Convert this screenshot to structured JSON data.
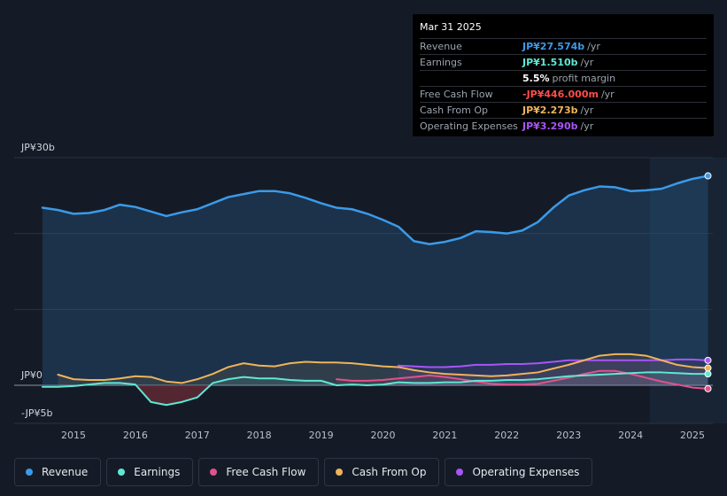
{
  "tooltip": {
    "date": "Mar 31 2025",
    "rows": [
      {
        "label": "Revenue",
        "value": "JP¥27.574b",
        "suffix": "/yr",
        "color": "#3b9ae9"
      },
      {
        "label": "Earnings",
        "value": "JP¥1.510b",
        "suffix": "/yr",
        "color": "#5ee8d4"
      },
      {
        "label": "",
        "value": "5.5%",
        "suffix": "profit margin",
        "color": "#ffffff"
      },
      {
        "label": "Free Cash Flow",
        "value": "-JP¥446.000m",
        "suffix": "/yr",
        "color": "#ff4d4d"
      },
      {
        "label": "Cash From Op",
        "value": "JP¥2.273b",
        "suffix": "/yr",
        "color": "#f0b35a"
      },
      {
        "label": "Operating Expenses",
        "value": "JP¥3.290b",
        "suffix": "/yr",
        "color": "#a855f7"
      }
    ]
  },
  "legend": {
    "items": [
      {
        "label": "Revenue",
        "color": "#3b9ae9"
      },
      {
        "label": "Earnings",
        "color": "#5ee8d4"
      },
      {
        "label": "Free Cash Flow",
        "color": "#e0528c"
      },
      {
        "label": "Cash From Op",
        "color": "#f0b35a"
      },
      {
        "label": "Operating Expenses",
        "color": "#a855f7"
      }
    ]
  },
  "chart_data": {
    "type": "line",
    "title": "",
    "xlabel": "",
    "ylabel": "",
    "y_unit": "JP¥b",
    "ylim": [
      -5,
      30
    ],
    "xlim": [
      2014.5,
      2025.3
    ],
    "y_tick_labels": [
      {
        "value": 30,
        "label": "JP¥30b"
      },
      {
        "value": 0,
        "label": "JP¥0"
      },
      {
        "value": -5,
        "label": "-JP¥5b"
      }
    ],
    "x_ticks": [
      "2015",
      "2016",
      "2017",
      "2018",
      "2019",
      "2020",
      "2021",
      "2022",
      "2023",
      "2024",
      "2025"
    ],
    "forecast_start": 2024.25,
    "series": [
      {
        "name": "Revenue",
        "color": "#3b9ae9",
        "points": [
          [
            2014.5,
            23.4
          ],
          [
            2014.75,
            23.1
          ],
          [
            2015.0,
            22.6
          ],
          [
            2015.25,
            22.7
          ],
          [
            2015.5,
            23.1
          ],
          [
            2015.75,
            23.8
          ],
          [
            2016.0,
            23.5
          ],
          [
            2016.25,
            22.9
          ],
          [
            2016.5,
            22.3
          ],
          [
            2016.75,
            22.8
          ],
          [
            2017.0,
            23.2
          ],
          [
            2017.25,
            24.0
          ],
          [
            2017.5,
            24.8
          ],
          [
            2017.75,
            25.2
          ],
          [
            2018.0,
            25.6
          ],
          [
            2018.25,
            25.6
          ],
          [
            2018.5,
            25.3
          ],
          [
            2018.75,
            24.7
          ],
          [
            2019.0,
            24.0
          ],
          [
            2019.25,
            23.4
          ],
          [
            2019.5,
            23.2
          ],
          [
            2019.75,
            22.6
          ],
          [
            2020.0,
            21.8
          ],
          [
            2020.25,
            20.9
          ],
          [
            2020.5,
            19.0
          ],
          [
            2020.75,
            18.6
          ],
          [
            2021.0,
            18.9
          ],
          [
            2021.25,
            19.4
          ],
          [
            2021.5,
            20.3
          ],
          [
            2021.75,
            20.2
          ],
          [
            2022.0,
            20.0
          ],
          [
            2022.25,
            20.4
          ],
          [
            2022.5,
            21.5
          ],
          [
            2022.75,
            23.4
          ],
          [
            2023.0,
            25.0
          ],
          [
            2023.25,
            25.7
          ],
          [
            2023.5,
            26.2
          ],
          [
            2023.75,
            26.1
          ],
          [
            2024.0,
            25.6
          ],
          [
            2024.25,
            25.7
          ],
          [
            2024.5,
            25.9
          ],
          [
            2024.75,
            26.6
          ],
          [
            2025.0,
            27.2
          ],
          [
            2025.25,
            27.6
          ]
        ]
      },
      {
        "name": "Earnings",
        "color": "#5ee8d4",
        "points": [
          [
            2014.5,
            -0.2
          ],
          [
            2014.75,
            -0.2
          ],
          [
            2015.0,
            -0.1
          ],
          [
            2015.25,
            0.1
          ],
          [
            2015.5,
            0.3
          ],
          [
            2015.75,
            0.3
          ],
          [
            2016.0,
            0.1
          ],
          [
            2016.25,
            -2.2
          ],
          [
            2016.5,
            -2.6
          ],
          [
            2016.75,
            -2.2
          ],
          [
            2017.0,
            -1.6
          ],
          [
            2017.25,
            0.3
          ],
          [
            2017.5,
            0.8
          ],
          [
            2017.75,
            1.1
          ],
          [
            2018.0,
            0.9
          ],
          [
            2018.25,
            0.9
          ],
          [
            2018.5,
            0.7
          ],
          [
            2018.75,
            0.6
          ],
          [
            2019.0,
            0.6
          ],
          [
            2019.25,
            0.0
          ],
          [
            2019.5,
            0.1
          ],
          [
            2019.75,
            0.0
          ],
          [
            2020.0,
            0.1
          ],
          [
            2020.25,
            0.4
          ],
          [
            2020.5,
            0.3
          ],
          [
            2020.75,
            0.3
          ],
          [
            2021.0,
            0.4
          ],
          [
            2021.25,
            0.4
          ],
          [
            2021.5,
            0.6
          ],
          [
            2021.75,
            0.6
          ],
          [
            2022.0,
            0.7
          ],
          [
            2022.25,
            0.7
          ],
          [
            2022.5,
            0.8
          ],
          [
            2022.75,
            1.0
          ],
          [
            2023.0,
            1.2
          ],
          [
            2023.25,
            1.3
          ],
          [
            2023.5,
            1.4
          ],
          [
            2023.75,
            1.5
          ],
          [
            2024.0,
            1.6
          ],
          [
            2024.25,
            1.7
          ],
          [
            2024.5,
            1.7
          ],
          [
            2024.75,
            1.6
          ],
          [
            2025.0,
            1.5
          ],
          [
            2025.25,
            1.5
          ]
        ]
      },
      {
        "name": "Free Cash Flow",
        "color": "#e0528c",
        "points": [
          [
            2019.25,
            0.8
          ],
          [
            2019.5,
            0.6
          ],
          [
            2019.75,
            0.6
          ],
          [
            2020.0,
            0.7
          ],
          [
            2020.25,
            0.9
          ],
          [
            2020.5,
            1.1
          ],
          [
            2020.75,
            1.3
          ],
          [
            2021.0,
            1.1
          ],
          [
            2021.25,
            0.8
          ],
          [
            2021.5,
            0.5
          ],
          [
            2021.75,
            0.2
          ],
          [
            2022.0,
            0.1
          ],
          [
            2022.25,
            0.1
          ],
          [
            2022.5,
            0.2
          ],
          [
            2022.75,
            0.6
          ],
          [
            2023.0,
            1.0
          ],
          [
            2023.25,
            1.5
          ],
          [
            2023.5,
            1.9
          ],
          [
            2023.75,
            1.9
          ],
          [
            2024.0,
            1.5
          ],
          [
            2024.25,
            1.0
          ],
          [
            2024.5,
            0.5
          ],
          [
            2024.75,
            0.1
          ],
          [
            2025.0,
            -0.3
          ],
          [
            2025.25,
            -0.45
          ]
        ]
      },
      {
        "name": "Cash From Op",
        "color": "#f0b35a",
        "points": [
          [
            2014.75,
            1.4
          ],
          [
            2015.0,
            0.8
          ],
          [
            2015.25,
            0.7
          ],
          [
            2015.5,
            0.7
          ],
          [
            2015.75,
            0.9
          ],
          [
            2016.0,
            1.2
          ],
          [
            2016.25,
            1.1
          ],
          [
            2016.5,
            0.5
          ],
          [
            2016.75,
            0.3
          ],
          [
            2017.0,
            0.8
          ],
          [
            2017.25,
            1.5
          ],
          [
            2017.5,
            2.4
          ],
          [
            2017.75,
            2.9
          ],
          [
            2018.0,
            2.6
          ],
          [
            2018.25,
            2.5
          ],
          [
            2018.5,
            2.9
          ],
          [
            2018.75,
            3.1
          ],
          [
            2019.0,
            3.0
          ],
          [
            2019.25,
            3.0
          ],
          [
            2019.5,
            2.9
          ],
          [
            2019.75,
            2.7
          ],
          [
            2020.0,
            2.5
          ],
          [
            2020.25,
            2.4
          ],
          [
            2020.5,
            2.0
          ],
          [
            2020.75,
            1.7
          ],
          [
            2021.0,
            1.5
          ],
          [
            2021.25,
            1.4
          ],
          [
            2021.5,
            1.3
          ],
          [
            2021.75,
            1.2
          ],
          [
            2022.0,
            1.3
          ],
          [
            2022.25,
            1.5
          ],
          [
            2022.5,
            1.7
          ],
          [
            2022.75,
            2.2
          ],
          [
            2023.0,
            2.7
          ],
          [
            2023.25,
            3.3
          ],
          [
            2023.5,
            3.9
          ],
          [
            2023.75,
            4.1
          ],
          [
            2024.0,
            4.1
          ],
          [
            2024.25,
            3.9
          ],
          [
            2024.5,
            3.3
          ],
          [
            2024.75,
            2.7
          ],
          [
            2025.0,
            2.4
          ],
          [
            2025.25,
            2.27
          ]
        ]
      },
      {
        "name": "Operating Expenses",
        "color": "#a855f7",
        "points": [
          [
            2020.25,
            2.6
          ],
          [
            2020.5,
            2.5
          ],
          [
            2020.75,
            2.4
          ],
          [
            2021.0,
            2.4
          ],
          [
            2021.25,
            2.5
          ],
          [
            2021.5,
            2.7
          ],
          [
            2021.75,
            2.7
          ],
          [
            2022.0,
            2.8
          ],
          [
            2022.25,
            2.8
          ],
          [
            2022.5,
            2.9
          ],
          [
            2022.75,
            3.1
          ],
          [
            2023.0,
            3.3
          ],
          [
            2023.25,
            3.3
          ],
          [
            2023.5,
            3.3
          ],
          [
            2023.75,
            3.3
          ],
          [
            2024.0,
            3.3
          ],
          [
            2024.25,
            3.3
          ],
          [
            2024.5,
            3.3
          ],
          [
            2024.75,
            3.4
          ],
          [
            2025.0,
            3.4
          ],
          [
            2025.25,
            3.29
          ]
        ]
      }
    ]
  }
}
